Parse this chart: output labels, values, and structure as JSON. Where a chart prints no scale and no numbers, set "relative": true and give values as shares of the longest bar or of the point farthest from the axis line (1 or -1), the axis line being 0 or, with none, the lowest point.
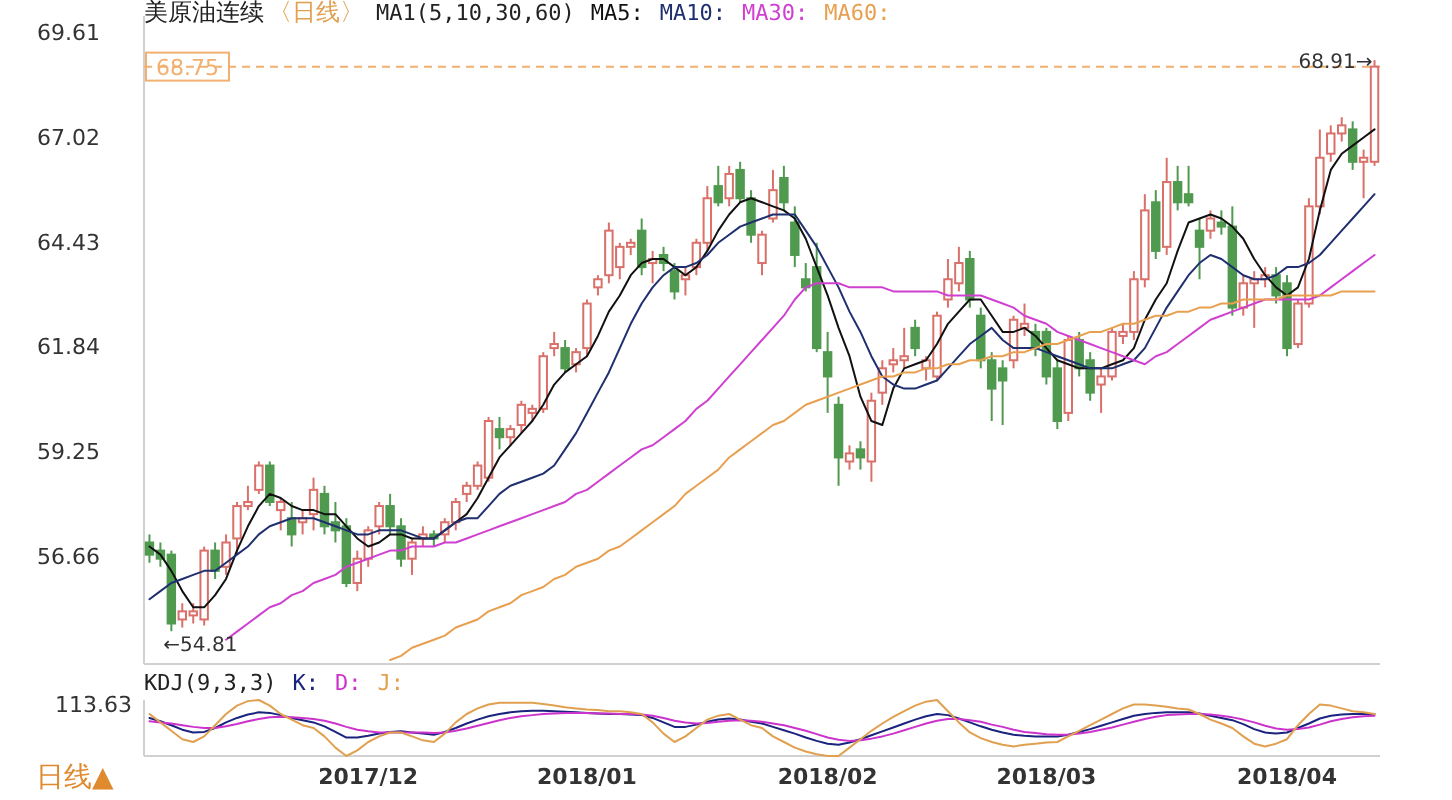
{
  "chart_data": [
    {
      "type": "candlestick",
      "title": "美原油连续",
      "subtitle": "〈日线〉",
      "legend_title": "MA1(5,10,30,60)",
      "legend": "top left",
      "ylim": [
        54.0,
        70.0
      ],
      "yticks": [
        69.61,
        67.02,
        64.43,
        61.84,
        59.25,
        56.66
      ],
      "categories": [
        null,
        null,
        null,
        null,
        null,
        null,
        null,
        null,
        null,
        null,
        null,
        null,
        null,
        null,
        null,
        null,
        null,
        null,
        null,
        null,
        "2017/12",
        null,
        null,
        null,
        null,
        null,
        null,
        null,
        null,
        null,
        null,
        null,
        null,
        null,
        null,
        null,
        null,
        null,
        null,
        null,
        "2018/01",
        null,
        null,
        null,
        null,
        null,
        null,
        null,
        null,
        null,
        null,
        null,
        null,
        null,
        null,
        null,
        null,
        null,
        null,
        null,
        null,
        null,
        "2018/02",
        null,
        null,
        null,
        null,
        null,
        null,
        null,
        null,
        null,
        null,
        null,
        null,
        null,
        null,
        null,
        null,
        null,
        null,
        null,
        "2018/03",
        null,
        null,
        null,
        null,
        null,
        null,
        null,
        null,
        null,
        null,
        null,
        null,
        null,
        null,
        null,
        null,
        null,
        null,
        null,
        null,
        null,
        "2018/04",
        null,
        null,
        null,
        null,
        null,
        null,
        null,
        null
      ],
      "ohlc": [
        [
          57.0,
          57.2,
          56.5,
          56.7
        ],
        [
          56.8,
          57.0,
          56.4,
          56.6
        ],
        [
          56.7,
          56.8,
          54.81,
          55.0
        ],
        [
          55.1,
          55.5,
          54.9,
          55.3
        ],
        [
          55.2,
          55.5,
          55.0,
          55.3
        ],
        [
          55.1,
          56.9,
          54.95,
          56.8
        ],
        [
          56.8,
          57.0,
          56.1,
          56.3
        ],
        [
          56.4,
          57.2,
          56.2,
          57.0
        ],
        [
          57.1,
          58.0,
          56.7,
          57.9
        ],
        [
          57.9,
          58.4,
          57.8,
          58.0
        ],
        [
          58.3,
          59.0,
          58.2,
          58.9
        ],
        [
          58.9,
          59.0,
          57.9,
          58.0
        ],
        [
          57.8,
          58.1,
          57.3,
          58.0
        ],
        [
          57.6,
          58.0,
          56.9,
          57.2
        ],
        [
          57.5,
          57.8,
          57.2,
          57.6
        ],
        [
          57.7,
          58.6,
          57.3,
          58.3
        ],
        [
          58.2,
          58.4,
          57.2,
          57.4
        ],
        [
          57.5,
          58.0,
          57.0,
          57.3
        ],
        [
          57.4,
          57.6,
          55.9,
          56.0
        ],
        [
          56.0,
          56.8,
          55.8,
          56.6
        ],
        [
          56.6,
          57.4,
          56.4,
          57.3
        ],
        [
          57.4,
          58.0,
          57.2,
          57.9
        ],
        [
          57.9,
          58.2,
          57.2,
          57.4
        ],
        [
          57.4,
          57.6,
          56.4,
          56.6
        ],
        [
          56.6,
          57.1,
          56.2,
          57.0
        ],
        [
          57.1,
          57.4,
          56.9,
          57.2
        ],
        [
          57.2,
          57.3,
          56.9,
          57.1
        ],
        [
          57.2,
          57.6,
          57.0,
          57.5
        ],
        [
          57.5,
          58.1,
          57.3,
          58.0
        ],
        [
          58.2,
          58.5,
          58.0,
          58.4
        ],
        [
          58.4,
          59.0,
          58.3,
          58.9
        ],
        [
          58.6,
          60.1,
          58.5,
          60.0
        ],
        [
          59.8,
          60.1,
          59.3,
          59.6
        ],
        [
          59.6,
          59.9,
          59.4,
          59.8
        ],
        [
          59.9,
          60.5,
          59.7,
          60.4
        ],
        [
          60.2,
          60.4,
          60.0,
          60.3
        ],
        [
          60.3,
          61.7,
          60.2,
          61.6
        ],
        [
          61.8,
          62.2,
          61.6,
          61.9
        ],
        [
          61.8,
          62.0,
          61.2,
          61.3
        ],
        [
          61.4,
          61.8,
          61.2,
          61.7
        ],
        [
          61.8,
          63.0,
          61.6,
          62.9
        ],
        [
          63.3,
          63.6,
          63.1,
          63.5
        ],
        [
          63.6,
          64.9,
          63.4,
          64.7
        ],
        [
          63.8,
          64.4,
          63.5,
          64.3
        ],
        [
          64.3,
          64.5,
          64.1,
          64.4
        ],
        [
          64.7,
          65.0,
          63.6,
          63.8
        ],
        [
          63.9,
          64.2,
          63.4,
          64.0
        ],
        [
          64.1,
          64.3,
          63.7,
          63.9
        ],
        [
          63.7,
          63.9,
          63.0,
          63.2
        ],
        [
          63.5,
          63.8,
          63.1,
          63.6
        ],
        [
          63.8,
          64.5,
          63.6,
          64.4
        ],
        [
          64.4,
          65.8,
          64.2,
          65.5
        ],
        [
          65.8,
          66.3,
          65.3,
          65.4
        ],
        [
          65.5,
          66.3,
          65.3,
          66.1
        ],
        [
          66.2,
          66.4,
          65.4,
          65.5
        ],
        [
          65.5,
          65.7,
          64.4,
          64.6
        ],
        [
          63.9,
          64.7,
          63.6,
          64.6
        ],
        [
          65.0,
          66.2,
          64.9,
          65.7
        ],
        [
          66.0,
          66.3,
          65.2,
          65.4
        ],
        [
          64.9,
          65.3,
          63.8,
          64.1
        ],
        [
          63.5,
          63.9,
          63.2,
          63.3
        ],
        [
          63.8,
          64.4,
          61.7,
          61.8
        ],
        [
          61.7,
          62.2,
          60.2,
          61.1
        ],
        [
          60.4,
          60.6,
          58.4,
          59.1
        ],
        [
          59.0,
          59.4,
          58.8,
          59.2
        ],
        [
          59.3,
          59.5,
          58.8,
          59.1
        ],
        [
          59.0,
          60.7,
          58.5,
          60.5
        ],
        [
          60.7,
          61.5,
          60.4,
          61.3
        ],
        [
          61.4,
          61.8,
          61.2,
          61.5
        ],
        [
          61.5,
          62.3,
          61.3,
          61.6
        ],
        [
          62.3,
          62.5,
          61.6,
          61.8
        ],
        [
          61.3,
          61.6,
          61.0,
          61.5
        ],
        [
          61.1,
          62.7,
          61.0,
          62.6
        ],
        [
          63.0,
          64.0,
          62.8,
          63.5
        ],
        [
          63.4,
          64.3,
          63.2,
          63.9
        ],
        [
          64.0,
          64.2,
          62.8,
          63.0
        ],
        [
          62.6,
          62.8,
          61.3,
          61.5
        ],
        [
          61.5,
          61.7,
          60.0,
          60.8
        ],
        [
          61.3,
          61.5,
          59.9,
          61.0
        ],
        [
          61.5,
          62.6,
          61.3,
          62.5
        ],
        [
          62.3,
          62.9,
          62.1,
          62.4
        ],
        [
          62.2,
          62.4,
          61.6,
          61.8
        ],
        [
          62.2,
          62.3,
          60.9,
          61.1
        ],
        [
          61.3,
          61.5,
          59.8,
          60.0
        ],
        [
          60.2,
          62.1,
          60.0,
          62.0
        ],
        [
          62.0,
          62.2,
          61.1,
          61.3
        ],
        [
          61.5,
          61.7,
          60.5,
          60.7
        ],
        [
          60.9,
          61.3,
          60.2,
          61.1
        ],
        [
          61.1,
          62.3,
          61.0,
          62.2
        ],
        [
          62.1,
          62.4,
          61.9,
          62.2
        ],
        [
          62.2,
          63.7,
          62.0,
          63.5
        ],
        [
          63.5,
          65.6,
          63.3,
          65.2
        ],
        [
          65.4,
          65.7,
          64.0,
          64.2
        ],
        [
          64.3,
          66.5,
          64.1,
          65.9
        ],
        [
          65.9,
          66.3,
          65.2,
          65.4
        ],
        [
          65.6,
          66.3,
          65.3,
          65.4
        ],
        [
          64.7,
          65.0,
          63.5,
          64.3
        ],
        [
          64.7,
          65.2,
          64.5,
          65.0
        ],
        [
          64.9,
          65.2,
          64.6,
          64.8
        ],
        [
          64.8,
          65.3,
          62.6,
          62.8
        ],
        [
          62.8,
          63.6,
          62.6,
          63.4
        ],
        [
          63.4,
          63.7,
          62.3,
          63.5
        ],
        [
          63.5,
          63.8,
          63.3,
          63.6
        ],
        [
          63.6,
          63.8,
          62.9,
          63.1
        ],
        [
          63.4,
          63.6,
          61.6,
          61.8
        ],
        [
          61.9,
          63.0,
          61.8,
          62.9
        ],
        [
          62.9,
          65.5,
          62.8,
          65.3
        ],
        [
          65.3,
          67.2,
          65.1,
          66.5
        ],
        [
          66.6,
          67.3,
          66.4,
          67.1
        ],
        [
          67.1,
          67.5,
          66.9,
          67.3
        ],
        [
          67.2,
          67.4,
          66.2,
          66.4
        ],
        [
          66.4,
          66.7,
          65.5,
          66.5
        ],
        [
          66.4,
          68.91,
          66.3,
          68.75
        ]
      ],
      "colors": [
        "#4f9a4f",
        "#4f9a4f",
        "#4f9a4f",
        "#d9706a",
        "#d9706a",
        "#d9706a",
        "#4f9a4f",
        "#d9706a",
        "#d9706a",
        "#d9706a",
        "#d9706a",
        "#4f9a4f",
        "#d9706a",
        "#4f9a4f",
        "#d9706a",
        "#d9706a",
        "#4f9a4f",
        "#4f9a4f",
        "#4f9a4f",
        "#d9706a",
        "#d9706a",
        "#d9706a",
        "#4f9a4f",
        "#4f9a4f",
        "#d9706a",
        "#d9706a",
        "#4f9a4f",
        "#d9706a",
        "#d9706a",
        "#d9706a",
        "#d9706a",
        "#d9706a",
        "#4f9a4f",
        "#d9706a",
        "#d9706a",
        "#d9706a",
        "#d9706a",
        "#d9706a",
        "#4f9a4f",
        "#d9706a",
        "#d9706a",
        "#d9706a",
        "#d9706a",
        "#d9706a",
        "#d9706a",
        "#4f9a4f",
        "#d9706a",
        "#4f9a4f",
        "#4f9a4f",
        "#d9706a",
        "#d9706a",
        "#d9706a",
        "#4f9a4f",
        "#d9706a",
        "#4f9a4f",
        "#4f9a4f",
        "#d9706a",
        "#d9706a",
        "#4f9a4f",
        "#4f9a4f",
        "#4f9a4f",
        "#4f9a4f",
        "#4f9a4f",
        "#4f9a4f",
        "#d9706a",
        "#4f9a4f",
        "#d9706a",
        "#d9706a",
        "#d9706a",
        "#d9706a",
        "#4f9a4f",
        "#d9706a",
        "#d9706a",
        "#d9706a",
        "#d9706a",
        "#4f9a4f",
        "#4f9a4f",
        "#4f9a4f",
        "#4f9a4f",
        "#d9706a",
        "#d9706a",
        "#4f9a4f",
        "#4f9a4f",
        "#4f9a4f",
        "#d9706a",
        "#4f9a4f",
        "#4f9a4f",
        "#d9706a",
        "#d9706a",
        "#d9706a",
        "#d9706a",
        "#d9706a",
        "#4f9a4f",
        "#d9706a",
        "#4f9a4f",
        "#4f9a4f",
        "#4f9a4f",
        "#d9706a",
        "#4f9a4f",
        "#4f9a4f",
        "#d9706a",
        "#d9706a",
        "#d9706a",
        "#4f9a4f",
        "#4f9a4f",
        "#d9706a",
        "#d9706a",
        "#d9706a",
        "#d9706a",
        "#d9706a",
        "#4f9a4f",
        "#d9706a",
        "#d9706a"
      ],
      "series": [
        {
          "name": "MA5:",
          "type": "line",
          "color": "#111111",
          "values": [
            56.9,
            56.7,
            56.3,
            55.8,
            55.4,
            55.4,
            55.7,
            56.1,
            56.8,
            57.4,
            57.9,
            58.2,
            58.1,
            57.9,
            57.8,
            57.8,
            57.7,
            57.7,
            57.4,
            57.1,
            56.9,
            57.0,
            57.2,
            57.2,
            57.1,
            57.1,
            57.1,
            57.3,
            57.5,
            57.7,
            58.1,
            58.6,
            59.1,
            59.4,
            59.7,
            60.0,
            60.4,
            60.9,
            61.2,
            61.4,
            61.6,
            62.1,
            62.7,
            63.1,
            63.6,
            63.9,
            64.0,
            64.0,
            63.8,
            63.6,
            63.8,
            64.2,
            64.7,
            65.1,
            65.4,
            65.5,
            65.4,
            65.3,
            65.2,
            65.0,
            64.5,
            63.8,
            63.1,
            62.3,
            61.6,
            60.6,
            60.0,
            59.9,
            60.8,
            61.3,
            61.4,
            61.5,
            61.9,
            62.4,
            62.7,
            63.0,
            63.0,
            62.6,
            62.2,
            62.2,
            62.3,
            62.1,
            61.8,
            61.5,
            61.4,
            61.3,
            61.3,
            61.3,
            61.4,
            61.5,
            61.8,
            62.5,
            63.0,
            63.4,
            64.2,
            64.9,
            65.0,
            65.1,
            65.0,
            64.8,
            64.5,
            64.0,
            63.6,
            63.3,
            63.1,
            63.3,
            64.0,
            65.2,
            66.2,
            66.6,
            66.8,
            67.0,
            67.2
          ]
        },
        {
          "name": "MA10:",
          "type": "line",
          "color": "#1f2f6f",
          "values": [
            55.6,
            55.8,
            56.0,
            56.1,
            56.2,
            56.3,
            56.3,
            56.5,
            56.7,
            56.9,
            57.2,
            57.4,
            57.5,
            57.6,
            57.6,
            57.6,
            57.5,
            57.4,
            57.3,
            57.2,
            57.2,
            57.3,
            57.3,
            57.3,
            57.2,
            57.1,
            57.1,
            57.3,
            57.5,
            57.6,
            57.6,
            57.9,
            58.2,
            58.4,
            58.5,
            58.6,
            58.7,
            58.9,
            59.3,
            59.7,
            60.2,
            60.7,
            61.2,
            61.8,
            62.4,
            62.9,
            63.3,
            63.6,
            63.8,
            63.8,
            63.9,
            64.1,
            64.4,
            64.6,
            64.8,
            64.9,
            65.0,
            65.1,
            65.1,
            65.1,
            64.7,
            64.3,
            63.8,
            63.3,
            62.7,
            62.2,
            61.6,
            61.1,
            60.9,
            60.8,
            60.8,
            60.9,
            61.0,
            61.3,
            61.6,
            61.9,
            62.1,
            62.3,
            62.0,
            61.8,
            61.8,
            61.8,
            61.7,
            61.6,
            61.5,
            61.4,
            61.3,
            61.3,
            61.3,
            61.4,
            61.5,
            61.8,
            62.3,
            62.8,
            63.2,
            63.6,
            63.9,
            64.1,
            64.0,
            63.8,
            63.6,
            63.5,
            63.5,
            63.6,
            63.8,
            63.8,
            63.9,
            64.1,
            64.4,
            64.7,
            65.0,
            65.3,
            65.6
          ]
        },
        {
          "name": "MA30:",
          "type": "line",
          "color": "#d040d0",
          "values": [
            null,
            null,
            null,
            null,
            null,
            null,
            null,
            54.6,
            54.8,
            55.0,
            55.2,
            55.4,
            55.5,
            55.7,
            55.8,
            56.0,
            56.1,
            56.2,
            56.4,
            56.5,
            56.6,
            56.7,
            56.8,
            56.8,
            56.9,
            56.9,
            56.9,
            57.0,
            57.0,
            57.1,
            57.2,
            57.3,
            57.4,
            57.5,
            57.6,
            57.7,
            57.8,
            57.9,
            58.0,
            58.2,
            58.3,
            58.5,
            58.7,
            58.9,
            59.1,
            59.3,
            59.4,
            59.6,
            59.8,
            60.0,
            60.3,
            60.5,
            60.8,
            61.1,
            61.4,
            61.7,
            62.0,
            62.3,
            62.6,
            63.0,
            63.3,
            63.4,
            63.4,
            63.4,
            63.3,
            63.3,
            63.3,
            63.3,
            63.2,
            63.2,
            63.2,
            63.2,
            63.2,
            63.1,
            63.1,
            63.1,
            63.1,
            63.0,
            62.9,
            62.8,
            62.6,
            62.5,
            62.4,
            62.2,
            62.1,
            62.0,
            61.9,
            61.8,
            61.7,
            61.6,
            61.5,
            61.4,
            61.6,
            61.7,
            61.9,
            62.1,
            62.3,
            62.5,
            62.6,
            62.7,
            62.8,
            62.9,
            63.0,
            63.0,
            63.0,
            63.0,
            63.0,
            63.1,
            63.3,
            63.5,
            63.7,
            63.9,
            64.1
          ]
        },
        {
          "name": "MA60:",
          "type": "line",
          "color": "#e8a050",
          "values": [
            null,
            null,
            null,
            null,
            null,
            null,
            null,
            null,
            null,
            null,
            null,
            null,
            null,
            null,
            null,
            null,
            null,
            null,
            null,
            null,
            null,
            null,
            54.1,
            54.2,
            54.4,
            54.5,
            54.6,
            54.7,
            54.9,
            55.0,
            55.1,
            55.3,
            55.4,
            55.5,
            55.7,
            55.8,
            55.9,
            56.1,
            56.2,
            56.4,
            56.5,
            56.6,
            56.8,
            56.9,
            57.1,
            57.3,
            57.5,
            57.7,
            57.9,
            58.2,
            58.4,
            58.6,
            58.8,
            59.1,
            59.3,
            59.5,
            59.7,
            59.9,
            60.0,
            60.2,
            60.4,
            60.5,
            60.6,
            60.7,
            60.8,
            60.9,
            61.0,
            61.1,
            61.1,
            61.2,
            61.2,
            61.3,
            61.3,
            61.4,
            61.4,
            61.5,
            61.5,
            61.6,
            61.6,
            61.7,
            61.7,
            61.8,
            61.9,
            61.9,
            62.0,
            62.1,
            62.2,
            62.2,
            62.3,
            62.4,
            62.4,
            62.5,
            62.6,
            62.6,
            62.7,
            62.7,
            62.8,
            62.8,
            62.9,
            62.9,
            63.0,
            63.0,
            63.0,
            63.0,
            63.1,
            63.1,
            63.1,
            63.1,
            63.1,
            63.2,
            63.2,
            63.2,
            63.2
          ]
        }
      ],
      "ref_lines": [
        {
          "axis": "y",
          "value": 68.75,
          "label": "68.75",
          "color": "#f2b070",
          "line_style": "dashed"
        }
      ],
      "annotations": [
        "68.91→",
        "←54.81"
      ]
    },
    {
      "type": "line",
      "legend_title": "KDJ(9,3,3)",
      "legend": "top left",
      "relative": true,
      "series": [
        {
          "name": "K:",
          "color": "#1a237e",
          "values": [
            0.68,
            0.62,
            0.55,
            0.47,
            0.42,
            0.43,
            0.5,
            0.6,
            0.68,
            0.74,
            0.78,
            0.77,
            0.73,
            0.68,
            0.64,
            0.6,
            0.53,
            0.43,
            0.33,
            0.33,
            0.36,
            0.4,
            0.43,
            0.44,
            0.42,
            0.4,
            0.38,
            0.43,
            0.5,
            0.58,
            0.65,
            0.71,
            0.75,
            0.78,
            0.8,
            0.81,
            0.81,
            0.8,
            0.79,
            0.78,
            0.77,
            0.76,
            0.75,
            0.75,
            0.74,
            0.73,
            0.68,
            0.6,
            0.52,
            0.52,
            0.56,
            0.61,
            0.65,
            0.67,
            0.65,
            0.61,
            0.58,
            0.52,
            0.46,
            0.4,
            0.33,
            0.27,
            0.22,
            0.2,
            0.24,
            0.3,
            0.37,
            0.44,
            0.51,
            0.58,
            0.65,
            0.71,
            0.75,
            0.73,
            0.67,
            0.6,
            0.53,
            0.47,
            0.42,
            0.38,
            0.36,
            0.35,
            0.35,
            0.35,
            0.38,
            0.43,
            0.48,
            0.54,
            0.6,
            0.66,
            0.72,
            0.75,
            0.77,
            0.78,
            0.78,
            0.78,
            0.76,
            0.72,
            0.68,
            0.64,
            0.57,
            0.48,
            0.42,
            0.4,
            0.42,
            0.5,
            0.58,
            0.67,
            0.72,
            0.74,
            0.75,
            0.75,
            0.75
          ]
        },
        {
          "name": "D:",
          "color": "#cc33cc",
          "values": [
            0.62,
            0.6,
            0.58,
            0.55,
            0.52,
            0.5,
            0.5,
            0.53,
            0.57,
            0.62,
            0.66,
            0.69,
            0.7,
            0.69,
            0.68,
            0.66,
            0.63,
            0.58,
            0.52,
            0.47,
            0.44,
            0.42,
            0.42,
            0.42,
            0.42,
            0.42,
            0.41,
            0.42,
            0.45,
            0.49,
            0.54,
            0.59,
            0.64,
            0.68,
            0.71,
            0.73,
            0.75,
            0.76,
            0.77,
            0.77,
            0.77,
            0.76,
            0.76,
            0.75,
            0.75,
            0.74,
            0.72,
            0.68,
            0.63,
            0.6,
            0.58,
            0.59,
            0.61,
            0.63,
            0.64,
            0.63,
            0.61,
            0.58,
            0.55,
            0.5,
            0.45,
            0.39,
            0.33,
            0.29,
            0.27,
            0.28,
            0.31,
            0.35,
            0.4,
            0.46,
            0.52,
            0.58,
            0.63,
            0.66,
            0.66,
            0.64,
            0.61,
            0.56,
            0.52,
            0.47,
            0.43,
            0.41,
            0.39,
            0.38,
            0.38,
            0.4,
            0.43,
            0.47,
            0.51,
            0.56,
            0.61,
            0.66,
            0.7,
            0.73,
            0.74,
            0.75,
            0.75,
            0.74,
            0.72,
            0.69,
            0.65,
            0.6,
            0.54,
            0.49,
            0.47,
            0.48,
            0.51,
            0.56,
            0.62,
            0.66,
            0.69,
            0.71,
            0.72
          ]
        },
        {
          "name": "J:",
          "color": "#e0a050",
          "values": [
            0.75,
            0.6,
            0.45,
            0.3,
            0.25,
            0.35,
            0.55,
            0.75,
            0.9,
            0.98,
            1.0,
            0.9,
            0.75,
            0.65,
            0.55,
            0.5,
            0.35,
            0.15,
            0,
            0.1,
            0.25,
            0.35,
            0.42,
            0.42,
            0.35,
            0.28,
            0.25,
            0.4,
            0.6,
            0.75,
            0.85,
            0.92,
            0.95,
            0.95,
            0.95,
            0.95,
            0.93,
            0.9,
            0.87,
            0.85,
            0.83,
            0.82,
            0.8,
            0.8,
            0.78,
            0.75,
            0.6,
            0.4,
            0.25,
            0.35,
            0.5,
            0.65,
            0.72,
            0.75,
            0.65,
            0.55,
            0.5,
            0.35,
            0.25,
            0.15,
            0.08,
            0.03,
            0,
            0,
            0.15,
            0.3,
            0.45,
            0.58,
            0.7,
            0.8,
            0.9,
            0.97,
            1.0,
            0.8,
            0.6,
            0.42,
            0.32,
            0.25,
            0.2,
            0.17,
            0.2,
            0.22,
            0.24,
            0.25,
            0.35,
            0.45,
            0.55,
            0.65,
            0.75,
            0.85,
            0.92,
            0.92,
            0.9,
            0.88,
            0.85,
            0.83,
            0.75,
            0.65,
            0.58,
            0.5,
            0.35,
            0.22,
            0.17,
            0.22,
            0.3,
            0.55,
            0.75,
            0.92,
            0.9,
            0.85,
            0.8,
            0.78,
            0.75
          ]
        }
      ],
      "annotations": [
        "113.63",
        "日线▲"
      ]
    }
  ]
}
